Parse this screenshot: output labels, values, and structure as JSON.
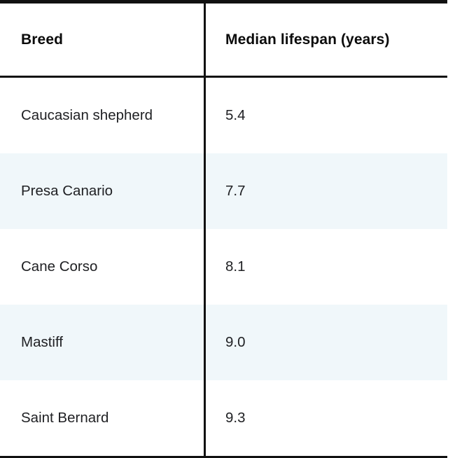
{
  "table": {
    "header": {
      "breed_label": "Breed",
      "lifespan_label": "Median lifespan (years)"
    },
    "rows": [
      {
        "breed": "Caucasian shepherd",
        "lifespan": "5.4"
      },
      {
        "breed": "Presa Canario",
        "lifespan": "7.7"
      },
      {
        "breed": "Cane Corso",
        "lifespan": "8.1"
      },
      {
        "breed": "Mastiff",
        "lifespan": "9.0"
      },
      {
        "breed": "Saint Bernard",
        "lifespan": "9.3"
      }
    ]
  },
  "colors": {
    "rule": "#111111",
    "alt_row_background": "#f0f7fa",
    "body_text": "#202124",
    "header_text": "#0b0b0b"
  },
  "chart_data": {
    "type": "table",
    "title": "",
    "columns": [
      "Breed",
      "Median lifespan (years)"
    ],
    "rows": [
      [
        "Caucasian shepherd",
        5.4
      ],
      [
        "Presa Canario",
        7.7
      ],
      [
        "Cane Corso",
        8.1
      ],
      [
        "Mastiff",
        9.0
      ],
      [
        "Saint Bernard",
        9.3
      ]
    ]
  }
}
